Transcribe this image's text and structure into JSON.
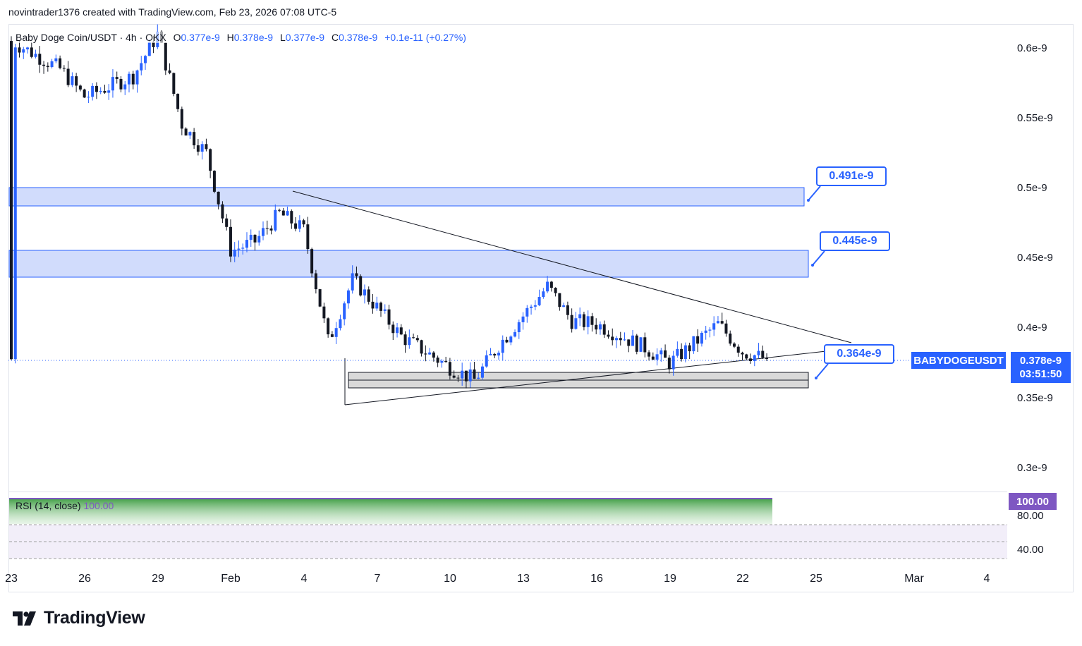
{
  "header": {
    "attribution": "novintrader1376 created with TradingView.com, Feb 23, 2026 07:08 UTC-5"
  },
  "legend": {
    "symbol": "Baby Doge Coin/USDT · 4h · OKX",
    "open_label": "O",
    "open": "0.377e-9",
    "high_label": "H",
    "high": "0.378e-9",
    "low_label": "L",
    "low": "0.377e-9",
    "close_label": "C",
    "close": "0.378e-9",
    "change": "+0.1e-11 (+0.27%)"
  },
  "price_axis": [
    "0.6e-9",
    "0.55e-9",
    "0.5e-9",
    "0.45e-9",
    "0.4e-9",
    "0.35e-9",
    "0.3e-9"
  ],
  "time_axis": [
    "23",
    "26",
    "29",
    "Feb",
    "4",
    "7",
    "10",
    "13",
    "16",
    "19",
    "22",
    "25",
    "Mar",
    "4"
  ],
  "callouts": [
    "0.491e-9",
    "0.445e-9",
    "0.364e-9"
  ],
  "badges": {
    "symbol": "BABYDOGEUSDT",
    "price": "0.378e-9",
    "countdown": "03:51:50",
    "rsi_value": "100.00"
  },
  "rsi": {
    "label": "RSI (14, close)",
    "value": "100.00",
    "levels": [
      "80.00",
      "40.00"
    ]
  },
  "brand": {
    "name": "TradingView",
    "logo_icon": "tradingview-logo-icon"
  },
  "colors": {
    "up": "#2962ff",
    "down": "#131722",
    "zone_fill": "#d1dcfc",
    "zone_border": "#2962ff",
    "support_fill": "#d9d9d9",
    "rsi_purple": "#7e57c2",
    "rsi_green": "#4caf50"
  },
  "chart_data": {
    "type": "candlestick",
    "symbol": "BABYDOGEUSDT",
    "interval": "4h",
    "exchange": "OKX",
    "ylim": [
      0.285,
      0.617
    ],
    "y_unit": "e-9",
    "x_range": [
      "Jan 23, 2026",
      "Mar 4, 2026"
    ],
    "last_close": 0.378,
    "approx_path": [
      {
        "date": "Jan 23",
        "close": 0.605
      },
      {
        "date": "Jan 25",
        "close": 0.585
      },
      {
        "date": "Jan 26",
        "close": 0.565
      },
      {
        "date": "Jan 28",
        "close": 0.58
      },
      {
        "date": "Jan 29",
        "close": 0.61
      },
      {
        "date": "Jan 30",
        "close": 0.545
      },
      {
        "date": "Jan 31",
        "close": 0.525
      },
      {
        "date": "Feb 1",
        "close": 0.455
      },
      {
        "date": "Feb 2",
        "close": 0.462
      },
      {
        "date": "Feb 3",
        "close": 0.482
      },
      {
        "date": "Feb 4",
        "close": 0.47
      },
      {
        "date": "Feb 5",
        "close": 0.39
      },
      {
        "date": "Feb 6",
        "close": 0.435
      },
      {
        "date": "Feb 8",
        "close": 0.394
      },
      {
        "date": "Feb 10",
        "close": 0.372
      },
      {
        "date": "Feb 11",
        "close": 0.363
      },
      {
        "date": "Feb 12",
        "close": 0.388
      },
      {
        "date": "Feb 14",
        "close": 0.43
      },
      {
        "date": "Feb 15",
        "close": 0.405
      },
      {
        "date": "Feb 16",
        "close": 0.403
      },
      {
        "date": "Feb 18",
        "close": 0.386
      },
      {
        "date": "Feb 19",
        "close": 0.375
      },
      {
        "date": "Feb 21",
        "close": 0.403
      },
      {
        "date": "Feb 22",
        "close": 0.383
      },
      {
        "date": "Feb 23",
        "close": 0.378
      }
    ],
    "zones": [
      {
        "name": "resistance",
        "from": 0.488,
        "to": 0.501,
        "label": "0.491e-9"
      },
      {
        "name": "resistance",
        "from": 0.436,
        "to": 0.456,
        "label": "0.445e-9"
      },
      {
        "name": "support",
        "from": 0.357,
        "to": 0.369,
        "label": "0.364e-9"
      }
    ],
    "trendlines": [
      {
        "from": {
          "date": "Feb 3",
          "price": 0.497
        },
        "to": {
          "date": "Feb 26",
          "price": 0.389
        }
      },
      {
        "from": {
          "date": "Feb 5",
          "price": 0.346
        },
        "to": {
          "date": "Feb 25",
          "price": 0.385
        }
      }
    ],
    "rsi": {
      "period": 14,
      "source": "close",
      "value": 100.0,
      "levels": [
        80,
        40
      ]
    },
    "grid": false
  }
}
